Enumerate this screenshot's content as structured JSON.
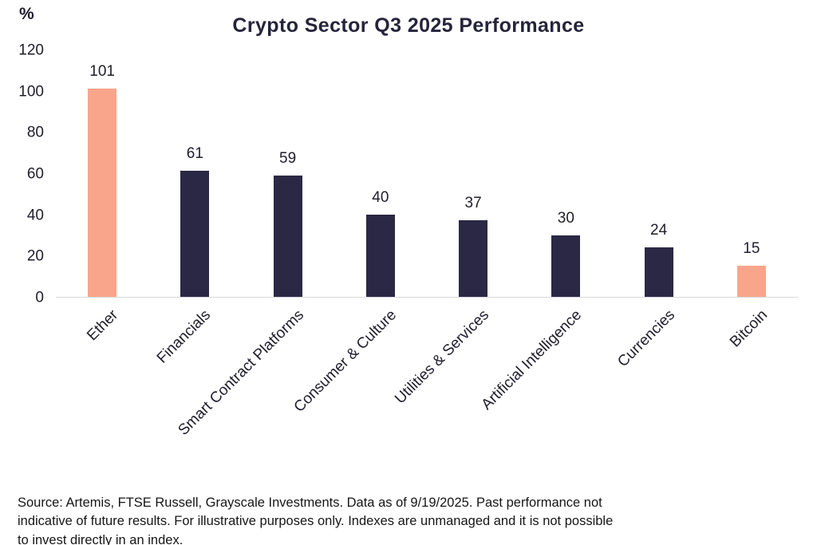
{
  "chart": {
    "title": "Crypto Sector Q3 2025 Performance",
    "y_unit": "%"
  },
  "chart_data": {
    "type": "bar",
    "title": "Crypto Sector Q3 2025 Performance",
    "categories": [
      "Ether",
      "Financials",
      "Smart Contract Platforms",
      "Consumer & Culture",
      "Utilities & Services",
      "Artificial Intelligence",
      "Currencies",
      "Bitcoin"
    ],
    "values": [
      101,
      61,
      59,
      40,
      37,
      30,
      24,
      15
    ],
    "bar_colors": [
      "#F9A58B",
      "#2B2845",
      "#2B2845",
      "#2B2845",
      "#2B2845",
      "#2B2845",
      "#2B2845",
      "#F9A58B"
    ],
    "xlabel": "",
    "ylabel": "%",
    "ylim": [
      0,
      120
    ],
    "yticks": [
      0,
      20,
      40,
      60,
      80,
      100,
      120
    ],
    "grid": false,
    "legend": "none",
    "value_labels": true,
    "x_label_rotation_deg": 45
  },
  "colors": {
    "highlight": "#F9A58B",
    "primary": "#2B2845",
    "text": "#1F1E2C",
    "axis_line": "#D8D8D8"
  },
  "footer": {
    "lines": [
      "Source: Artemis, FTSE Russell, Grayscale Investments. Data as of 9/19/2025. Past performance not",
      "indicative of future results. For illustrative purposes only. Indexes are unmanaged and it is not possible",
      "to invest directly in an index."
    ]
  }
}
